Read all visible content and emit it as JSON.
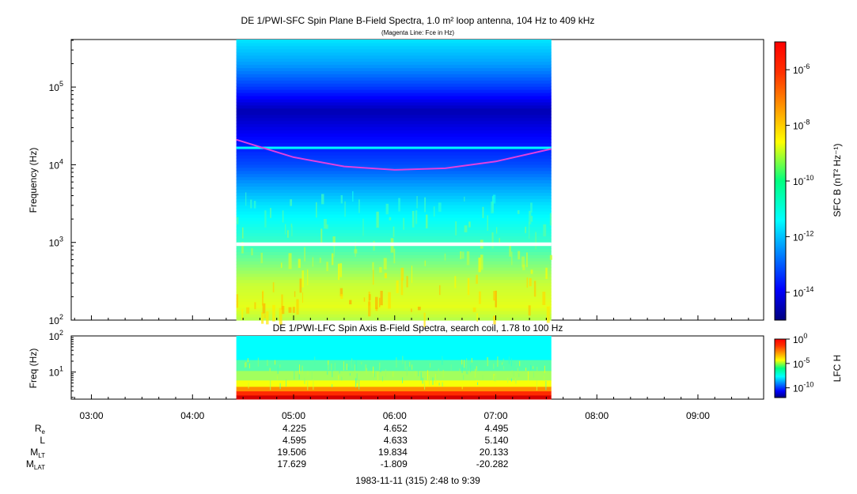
{
  "chart_data": [
    {
      "type": "heatmap",
      "title": "DE 1/PWI-SFC  Spin Plane B-Field Spectra, 1.0 m² loop antenna, 104 Hz to 409 kHz",
      "subtitle": "(Magenta Line: Fce in Hz)",
      "ylabel": "Frequency (Hz)",
      "yscale": "log",
      "ylim": [
        100,
        409000
      ],
      "yticks": [
        {
          "value": 100,
          "base": "10",
          "exp": "2"
        },
        {
          "value": 1000,
          "base": "10",
          "exp": "3"
        },
        {
          "value": 10000,
          "base": "10",
          "exp": "4"
        },
        {
          "value": 100000,
          "base": "10",
          "exp": "5"
        }
      ],
      "data_time_range": [
        "04:26",
        "07:33"
      ],
      "colorbar": {
        "label": "SFC B (nT² Hz⁻¹)",
        "scale": "log",
        "range": [
          1e-15,
          1e-05
        ],
        "ticks": [
          {
            "value": 1e-06,
            "base": "10",
            "exp": "-6"
          },
          {
            "value": 1e-08,
            "base": "10",
            "exp": "-8"
          },
          {
            "value": 1e-10,
            "base": "10",
            "exp": "-10"
          },
          {
            "value": 1e-12,
            "base": "10",
            "exp": "-12"
          },
          {
            "value": 1e-14,
            "base": "10",
            "exp": "-14"
          }
        ]
      },
      "fce_line": {
        "color": "#e040e0",
        "x": [
          "04:26",
          "05:00",
          "05:30",
          "06:00",
          "06:30",
          "07:00",
          "07:33"
        ],
        "y": [
          21000,
          12500,
          9500,
          8600,
          9000,
          11000,
          16000
        ]
      },
      "spectrum_profile": [
        {
          "freq": 100,
          "level": -9.5
        },
        {
          "freq": 150,
          "level": -9.0
        },
        {
          "freq": 300,
          "level": -9.3
        },
        {
          "freq": 800,
          "level": -10.5
        },
        {
          "freq": 1500,
          "level": -11.0
        },
        {
          "freq": 3000,
          "level": -11.5
        },
        {
          "freq": 6000,
          "level": -12.3
        },
        {
          "freq": 10000,
          "level": -13.0
        },
        {
          "freq": 20000,
          "level": -13.6
        },
        {
          "freq": 50000,
          "level": -14.5
        },
        {
          "freq": 100000,
          "level": -13.2
        },
        {
          "freq": 200000,
          "level": -12.2
        },
        {
          "freq": 409000,
          "level": -11.5
        }
      ]
    },
    {
      "type": "heatmap",
      "title": "DE 1/PWI-LFC  Spin Axis B-Field Spectra, search coil, 1.78 to 100 Hz",
      "ylabel": "Freq (Hz)",
      "yscale": "log",
      "ylim": [
        1.78,
        100
      ],
      "yticks": [
        {
          "value": 10,
          "base": "10",
          "exp": "1"
        },
        {
          "value": 100,
          "base": "10",
          "exp": "2"
        }
      ],
      "data_time_range": [
        "04:26",
        "07:33"
      ],
      "colorbar": {
        "label": "LFC H",
        "scale": "log",
        "range": [
          1e-12,
          1
        ],
        "ticks": [
          {
            "value": 1,
            "base": "10",
            "exp": "0"
          },
          {
            "value": 1e-05,
            "base": "10",
            "exp": "-5"
          },
          {
            "value": 1e-10,
            "base": "10",
            "exp": "-10"
          }
        ]
      },
      "bands": [
        {
          "f_low": 1.78,
          "f_high": 2.3,
          "level": -1.0
        },
        {
          "f_low": 2.3,
          "f_high": 3.0,
          "level": -2.0
        },
        {
          "f_low": 3.0,
          "f_high": 4.0,
          "level": -3.2
        },
        {
          "f_low": 4.0,
          "f_high": 6.0,
          "level": -4.6
        },
        {
          "f_low": 6.0,
          "f_high": 11.0,
          "level": -5.6
        },
        {
          "f_low": 11.0,
          "f_high": 22.0,
          "level": -6.5
        },
        {
          "f_low": 22.0,
          "f_high": 100.0,
          "level": -7.5
        }
      ]
    }
  ],
  "time_axis": {
    "xlim": [
      "02:48",
      "09:39"
    ],
    "ticks": [
      "03:00",
      "04:00",
      "05:00",
      "06:00",
      "07:00",
      "08:00",
      "09:00"
    ]
  },
  "ephemeris": {
    "rows": [
      {
        "label": "R",
        "sub": "e",
        "values": [
          "4.225",
          "4.652",
          "4.495"
        ]
      },
      {
        "label": "L",
        "sub": "",
        "values": [
          "4.595",
          "4.633",
          "5.140"
        ]
      },
      {
        "label": "M",
        "sub": "LT",
        "values": [
          "19.506",
          "19.834",
          "20.133"
        ]
      },
      {
        "label": "M",
        "sub": "LAT",
        "values": [
          "17.629",
          "-1.809",
          "-20.282"
        ]
      }
    ],
    "times": [
      "05:00",
      "06:00",
      "07:00"
    ]
  },
  "footer": "1983-11-11 (315) 2:48 to 9:39"
}
